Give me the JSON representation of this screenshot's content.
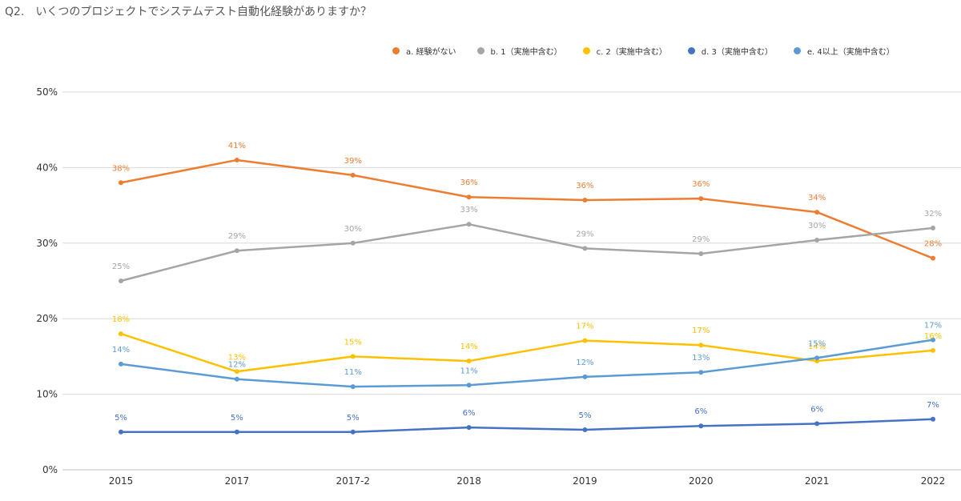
{
  "title": {
    "number": "Q2.",
    "text": "いくつのプロジェクトでシステムテスト自動化経験がありますか？"
  },
  "chart_data": {
    "type": "line",
    "x": [
      "2015",
      "2017",
      "2017-2",
      "2018",
      "2019",
      "2020",
      "2021",
      "2022"
    ],
    "ylim": [
      0,
      50
    ],
    "yticks": [
      0,
      10,
      20,
      30,
      40,
      50
    ],
    "ytick_labels": [
      "0%",
      "10%",
      "20%",
      "30%",
      "40%",
      "50%"
    ],
    "grid": true,
    "legend_position": "top",
    "series": [
      {
        "name": "a. 経験がない",
        "color": "#ED7D31",
        "values": [
          38,
          41,
          39,
          36.1,
          35.7,
          35.9,
          34.1,
          28
        ],
        "labels": [
          "38%",
          "41%",
          "39%",
          "36%",
          "36%",
          "36%",
          "34%",
          "28%"
        ]
      },
      {
        "name": "b. 1（実施中含む）",
        "color": "#A5A5A5",
        "values": [
          25,
          29,
          30,
          32.5,
          29.3,
          28.6,
          30.4,
          32
        ],
        "labels": [
          "25%",
          "29%",
          "30%",
          "33%",
          "29%",
          "29%",
          "30%",
          "32%"
        ]
      },
      {
        "name": "c. 2（実施中含む）",
        "color": "#FFC000",
        "values": [
          18,
          13,
          15,
          14.4,
          17.1,
          16.5,
          14.4,
          15.8
        ],
        "labels": [
          "18%",
          "13%",
          "15%",
          "14%",
          "17%",
          "17%",
          "14%",
          "16%"
        ]
      },
      {
        "name": "d. 3（実施中含む）",
        "color": "#4472C4",
        "values": [
          5,
          5,
          5,
          5.6,
          5.3,
          5.8,
          6.1,
          6.7
        ],
        "labels": [
          "5%",
          "5%",
          "5%",
          "6%",
          "5%",
          "6%",
          "6%",
          "7%"
        ]
      },
      {
        "name": "e. 4以上（実施中含む）",
        "color": "#5B9BD5",
        "values": [
          14,
          12,
          11,
          11.2,
          12.3,
          12.9,
          14.8,
          17.2
        ],
        "labels": [
          "14%",
          "12%",
          "11%",
          "11%",
          "12%",
          "13%",
          "15%",
          "17%"
        ]
      }
    ]
  }
}
